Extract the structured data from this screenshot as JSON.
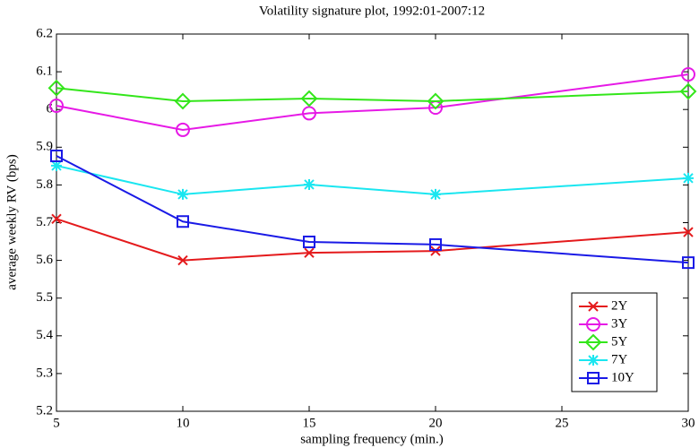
{
  "chart_data": {
    "type": "line",
    "title": "Volatility signature plot, 1992:01-2007:12",
    "x_label": "sampling frequency (min.)",
    "y_label": "average weekly RV (bps)",
    "x": [
      5,
      10,
      15,
      20,
      30
    ],
    "xlim": [
      5,
      30
    ],
    "xticks": [
      5,
      10,
      15,
      20,
      25,
      30
    ],
    "ylim": [
      5.2,
      6.2
    ],
    "yticks": [
      5.2,
      5.3,
      5.4,
      5.5,
      5.6,
      5.7,
      5.8,
      5.9,
      6,
      6.1,
      6.2
    ],
    "grid": false,
    "legend": "lower right",
    "series": [
      {
        "name": "2Y",
        "color": "#e41a1c",
        "marker": "x",
        "values": [
          5.71,
          5.6,
          5.62,
          5.625,
          5.675
        ]
      },
      {
        "name": "3Y",
        "color": "#e619e6",
        "marker": "circle",
        "values": [
          6.01,
          5.946,
          5.99,
          6.005,
          6.093
        ]
      },
      {
        "name": "5Y",
        "color": "#33e61a",
        "marker": "diamond",
        "values": [
          6.057,
          6.022,
          6.029,
          6.022,
          6.048
        ]
      },
      {
        "name": "7Y",
        "color": "#1ae6f0",
        "marker": "star",
        "values": [
          5.851,
          5.775,
          5.801,
          5.775,
          5.818
        ]
      },
      {
        "name": "10Y",
        "color": "#1a1ae6",
        "marker": "square",
        "values": [
          5.877,
          5.703,
          5.649,
          5.642,
          5.594
        ]
      }
    ]
  }
}
